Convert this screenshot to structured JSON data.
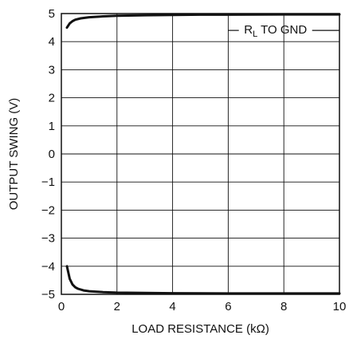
{
  "chart_data": {
    "type": "line",
    "xlabel": "LOAD RESISTANCE (kΩ)",
    "ylabel": "OUTPUT SWING (V)",
    "xlim": [
      0,
      10
    ],
    "ylim": [
      -5,
      5
    ],
    "grid": true,
    "x_ticks": [
      "0",
      "2",
      "4",
      "6",
      "8",
      "10"
    ],
    "y_ticks": [
      "5",
      "4",
      "3",
      "2",
      "1",
      "0",
      "−1",
      "−2",
      "−3",
      "−4",
      "−5"
    ],
    "annotation": {
      "label_main": "R",
      "label_sub": "L",
      "label_rest": " TO GND",
      "x": 7.7,
      "y": 4.4
    },
    "series": [
      {
        "x": [
          0.2,
          0.3,
          0.4,
          0.5,
          0.7,
          1.0,
          1.5,
          2,
          3,
          4,
          5,
          6,
          8,
          10
        ],
        "y": [
          4.5,
          4.65,
          4.73,
          4.78,
          4.83,
          4.87,
          4.9,
          4.92,
          4.94,
          4.95,
          4.96,
          4.96,
          4.97,
          4.97
        ]
      },
      {
        "x": [
          0.2,
          0.3,
          0.4,
          0.5,
          0.6,
          0.8,
          1.0,
          1.5,
          2,
          3,
          4,
          6,
          8,
          10
        ],
        "y": [
          -4.0,
          -4.45,
          -4.65,
          -4.75,
          -4.8,
          -4.86,
          -4.89,
          -4.92,
          -4.94,
          -4.95,
          -4.96,
          -4.97,
          -4.97,
          -4.97
        ]
      }
    ]
  }
}
